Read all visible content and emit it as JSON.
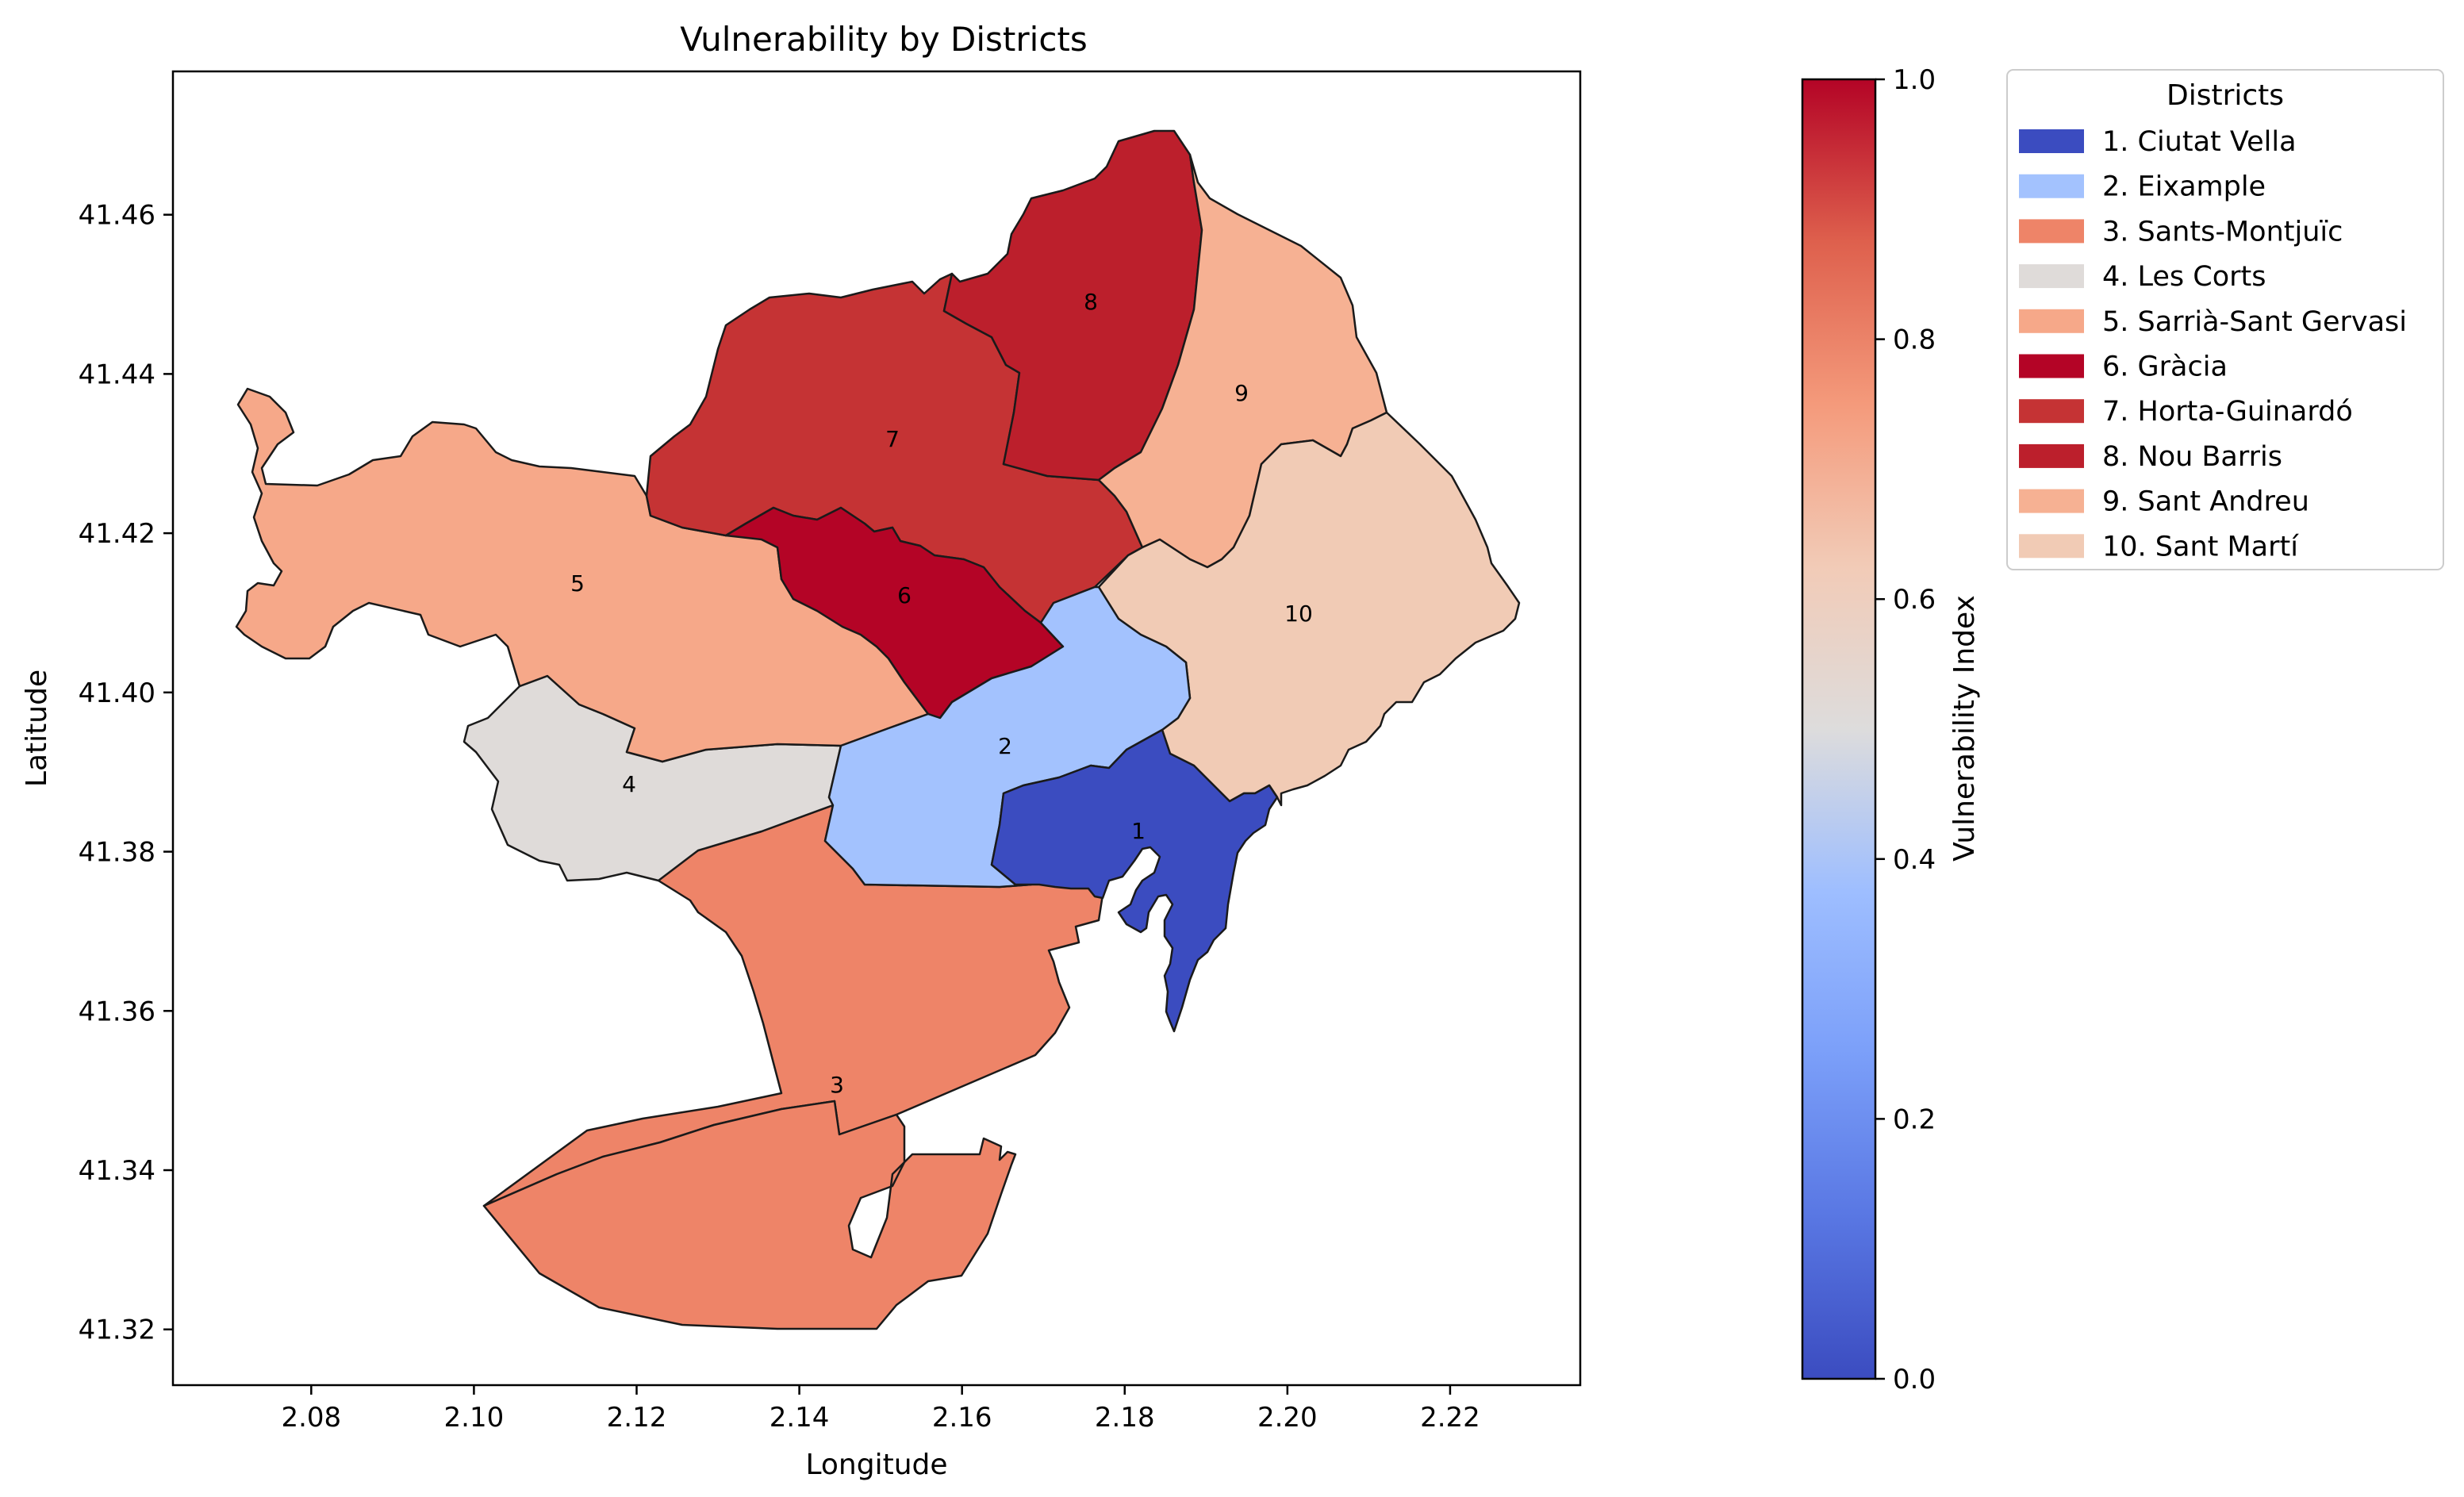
{
  "chart_data": {
    "type": "choropleth",
    "title": "Vulnerability by Districts",
    "xlabel": "Longitude",
    "ylabel": "Latitude",
    "xlim": [
      2.063,
      2.236
    ],
    "ylim": [
      41.313,
      41.478
    ],
    "xticks": [
      "2.08",
      "2.10",
      "2.12",
      "2.14",
      "2.16",
      "2.18",
      "2.20",
      "2.22"
    ],
    "yticks": [
      "41.32",
      "41.34",
      "41.36",
      "41.38",
      "41.40",
      "41.42",
      "41.44",
      "41.46"
    ],
    "colorbar": {
      "label": "Vulnerability Index",
      "range": [
        0.0,
        1.0
      ],
      "ticks": [
        "0.0",
        "0.2",
        "0.4",
        "0.6",
        "0.8",
        "1.0"
      ],
      "colormap": "coolwarm"
    },
    "legend": {
      "title": "Districts",
      "placement": "right of colorbar"
    },
    "districts": [
      {
        "num": "1",
        "legend": "1. Ciutat Vella",
        "value": 0.0,
        "color": "#3b4cc0"
      },
      {
        "num": "2",
        "legend": "2. Eixample",
        "value": 0.3,
        "color": "#a3c2fe"
      },
      {
        "num": "3",
        "legend": "3. Sants-Montjuïc",
        "value": 0.8,
        "color": "#ee8468"
      },
      {
        "num": "4",
        "legend": "4. Les Corts",
        "value": 0.55,
        "color": "#dfdbd9"
      },
      {
        "num": "5",
        "legend": "5. Sarrià-Sant Gervasi",
        "value": 0.7,
        "color": "#f6a889"
      },
      {
        "num": "6",
        "legend": "6. Gràcia",
        "value": 1.0,
        "color": "#b40426"
      },
      {
        "num": "7",
        "legend": "7. Horta-Guinardó",
        "value": 0.92,
        "color": "#c53334"
      },
      {
        "num": "8",
        "legend": "8. Nou Barris",
        "value": 0.96,
        "color": "#bc1f2c"
      },
      {
        "num": "9",
        "legend": "9. Sant Andreu",
        "value": 0.7,
        "color": "#f6b193"
      },
      {
        "num": "10",
        "legend": "10. Sant Martí",
        "value": 0.62,
        "color": "#f1cbb5"
      }
    ]
  }
}
